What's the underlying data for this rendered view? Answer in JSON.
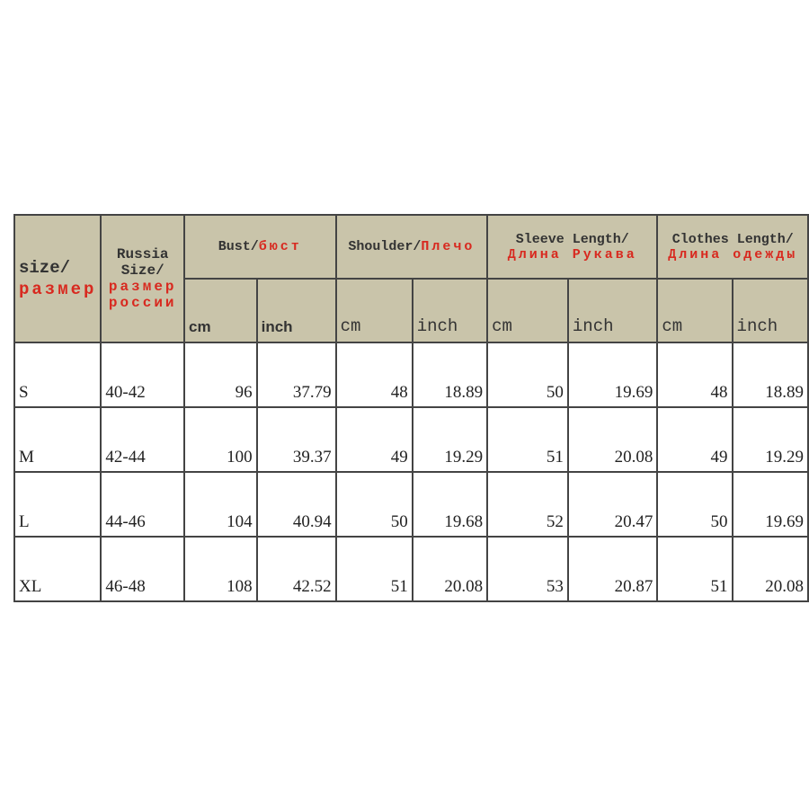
{
  "header": {
    "size": {
      "en": "size/",
      "ru": "размер"
    },
    "russia": {
      "en": "Russia Size/",
      "ru": "размер россии"
    },
    "bust": {
      "en": "Bust/",
      "ru": "бюст"
    },
    "shoulder": {
      "en": "Shoulder/",
      "ru": "Плечо"
    },
    "sleeve": {
      "en": "Sleeve Length/",
      "ru": "Длина Рукава"
    },
    "length": {
      "en": "Clothes Length/",
      "ru": "Длина одежды"
    },
    "cm": "cm",
    "inch": "inch"
  },
  "rows": [
    [
      "S",
      "40-42",
      "96",
      "37.79",
      "48",
      "18.89",
      "50",
      "19.69",
      "48",
      "18.89"
    ],
    [
      "M",
      "42-44",
      "100",
      "39.37",
      "49",
      "19.29",
      "51",
      "20.08",
      "49",
      "19.29"
    ],
    [
      "L",
      "44-46",
      "104",
      "40.94",
      "50",
      "19.68",
      "52",
      "20.47",
      "50",
      "19.69"
    ],
    [
      "XL",
      "46-48",
      "108",
      "42.52",
      "51",
      "20.08",
      "53",
      "20.87",
      "51",
      "20.08"
    ]
  ],
  "colors": {
    "header_bg": "#c9c4aa",
    "russian_text": "#d8291f"
  }
}
